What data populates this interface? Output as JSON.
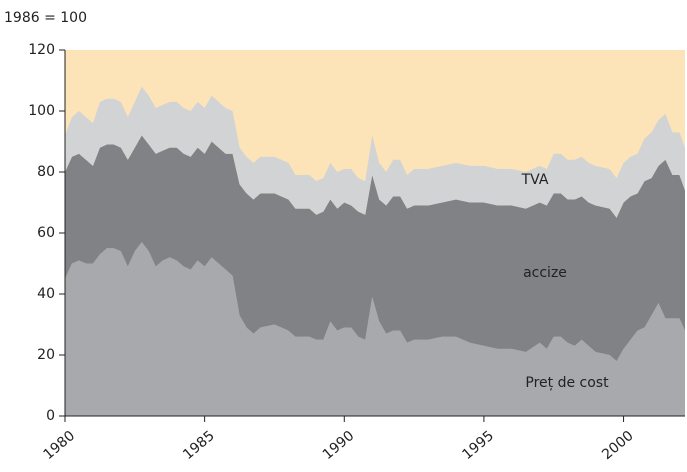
{
  "chart_data": {
    "type": "stacked_area",
    "y_label": "1986 = 100",
    "x": [
      1980,
      1980.25,
      1980.5,
      1980.75,
      1981,
      1981.25,
      1981.5,
      1981.75,
      1982,
      1982.25,
      1982.5,
      1982.75,
      1983,
      1983.25,
      1983.5,
      1983.75,
      1984,
      1984.25,
      1984.5,
      1984.75,
      1985,
      1985.25,
      1985.5,
      1985.75,
      1986,
      1986.25,
      1986.5,
      1986.75,
      1987,
      1987.5,
      1988,
      1988.25,
      1988.75,
      1989,
      1989.25,
      1989.5,
      1989.75,
      1990,
      1990.25,
      1990.5,
      1990.75,
      1991,
      1991.25,
      1991.5,
      1991.75,
      1992,
      1992.25,
      1992.5,
      1993,
      1993.5,
      1994,
      1994.5,
      1995,
      1995.5,
      1996,
      1996.5,
      1997,
      1997.25,
      1997.5,
      1997.75,
      1998,
      1998.25,
      1998.5,
      1998.75,
      1999,
      1999.5,
      1999.75,
      2000,
      2000.25,
      2000.5,
      2000.75,
      2001,
      2001.25,
      2001.5,
      2001.75,
      2002,
      2002.2
    ],
    "series": [
      {
        "name": "Preț de cost",
        "color": "#a7a9ac",
        "values": [
          45,
          50,
          51,
          50,
          50,
          53,
          55,
          55,
          54,
          49,
          54,
          57,
          54,
          49,
          51,
          52,
          51,
          49,
          48,
          51,
          49,
          52,
          50,
          48,
          46,
          33,
          29,
          27,
          29,
          30,
          28,
          26,
          26,
          25,
          25,
          31,
          28,
          29,
          29,
          26,
          25,
          39,
          31,
          27,
          28,
          28,
          24,
          25,
          25,
          26,
          26,
          24,
          23,
          22,
          22,
          21,
          24,
          22,
          26,
          26,
          24,
          23,
          25,
          23,
          21,
          20,
          18,
          22,
          25,
          28,
          29,
          33,
          37,
          32,
          32,
          32,
          28
        ]
      },
      {
        "name": "accize",
        "color": "#808285",
        "values": [
          35,
          35,
          35,
          34,
          32,
          35,
          34,
          34,
          34,
          35,
          34,
          35,
          35,
          37,
          36,
          36,
          37,
          37,
          37,
          37,
          37,
          38,
          38,
          38,
          40,
          43,
          44,
          44,
          44,
          43,
          43,
          42,
          42,
          41,
          42,
          40,
          40,
          41,
          40,
          41,
          41,
          40,
          40,
          42,
          44,
          44,
          44,
          44,
          44,
          44,
          45,
          46,
          47,
          47,
          47,
          47,
          46,
          47,
          47,
          47,
          47,
          48,
          47,
          47,
          48,
          48,
          47,
          48,
          47,
          45,
          48,
          45,
          45,
          52,
          47,
          47,
          46
        ]
      },
      {
        "name": "TVA",
        "color": "#d1d3d4",
        "values": [
          12,
          13,
          14,
          14,
          14,
          15,
          15,
          15,
          15,
          14,
          15,
          16,
          16,
          15,
          15,
          15,
          15,
          15,
          15,
          15,
          15,
          15,
          15,
          15,
          14,
          12,
          12,
          12,
          12,
          12,
          12,
          11,
          11,
          11,
          11,
          12,
          12,
          11,
          12,
          11,
          11,
          13,
          12,
          11,
          12,
          12,
          11,
          12,
          12,
          12,
          12,
          12,
          12,
          12,
          12,
          12,
          12,
          12,
          13,
          13,
          13,
          13,
          13,
          13,
          13,
          13,
          13,
          13,
          13,
          13,
          14,
          15,
          15,
          15,
          14,
          14,
          14
        ]
      }
    ],
    "background": "#fde4b8",
    "xlim": [
      1980,
      2002.2
    ],
    "xticks": [
      1980,
      1985,
      1990,
      1995,
      2000
    ],
    "ylim": [
      0,
      120
    ],
    "yticks": [
      0,
      20,
      40,
      60,
      80,
      100,
      120
    ]
  }
}
